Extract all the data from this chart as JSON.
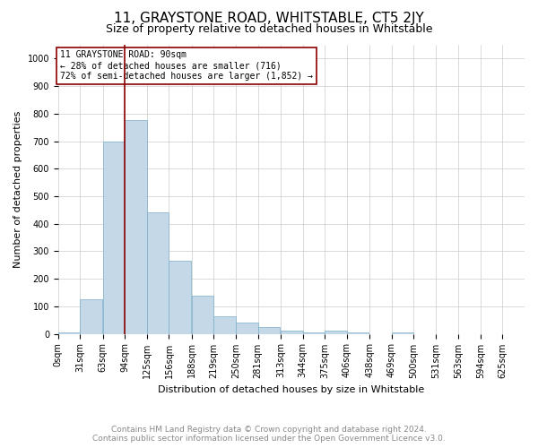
{
  "title": "11, GRAYSTONE ROAD, WHITSTABLE, CT5 2JY",
  "subtitle": "Size of property relative to detached houses in Whitstable",
  "xlabel": "Distribution of detached houses by size in Whitstable",
  "ylabel": "Number of detached properties",
  "footer_line1": "Contains HM Land Registry data © Crown copyright and database right 2024.",
  "footer_line2": "Contains public sector information licensed under the Open Government Licence v3.0.",
  "annotation_line1": "11 GRAYSTONE ROAD: 90sqm",
  "annotation_line2": "← 28% of detached houses are smaller (716)",
  "annotation_line3": "72% of semi-detached houses are larger (1,852) →",
  "bar_edge_size": 94,
  "categories": [
    0,
    31,
    63,
    94,
    125,
    156,
    188,
    219,
    250,
    281,
    313,
    344,
    375,
    406,
    438,
    469,
    500,
    531,
    563,
    594,
    625
  ],
  "values": [
    5,
    125,
    700,
    775,
    440,
    265,
    140,
    65,
    40,
    25,
    10,
    5,
    10,
    5,
    0,
    5,
    0,
    0,
    0,
    0,
    0
  ],
  "bar_color": "#c5d8e8",
  "bar_edgecolor": "#7aaec8",
  "highlight_line_color": "#8b0000",
  "annotation_box_edgecolor": "#8b0000",
  "grid_color": "#cccccc",
  "background_color": "#ffffff",
  "ylim": [
    0,
    1050
  ],
  "yticks": [
    0,
    100,
    200,
    300,
    400,
    500,
    600,
    700,
    800,
    900,
    1000
  ],
  "xlim_max": 656,
  "title_fontsize": 11,
  "subtitle_fontsize": 9,
  "axis_label_fontsize": 8,
  "tick_fontsize": 7,
  "annotation_fontsize": 7,
  "footer_fontsize": 6.5
}
